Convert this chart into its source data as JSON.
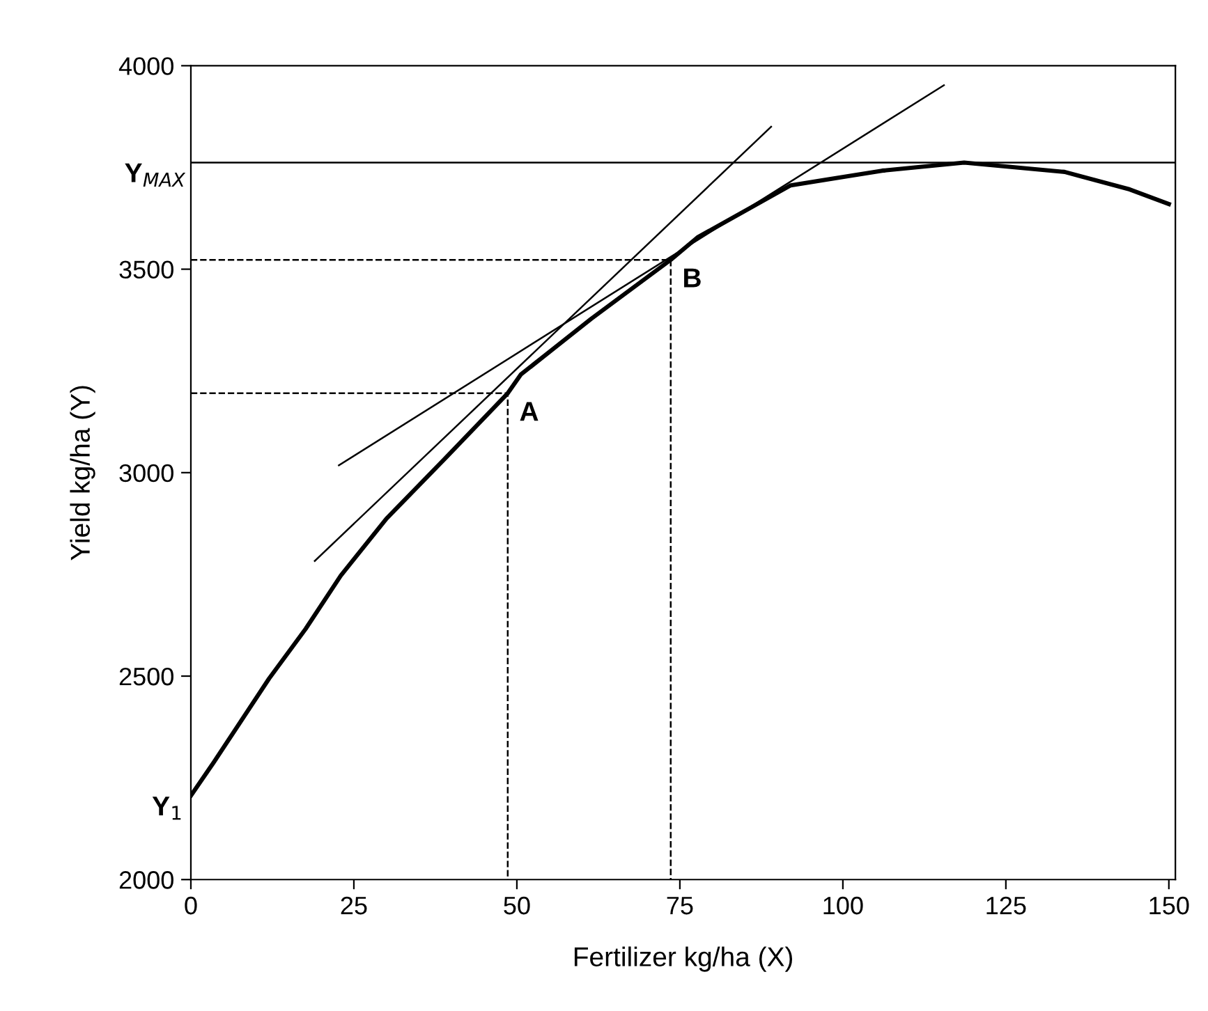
{
  "chart_data": {
    "type": "line",
    "xlabel": "Fertilizer kg/ha (X)",
    "ylabel": "Yield kg/ha (Y)",
    "xlim": [
      0,
      151
    ],
    "ylim": [
      2000,
      4000
    ],
    "xticks": [
      0,
      25,
      50,
      75,
      100,
      125,
      150
    ],
    "yticks": [
      2000,
      2500,
      3000,
      3500,
      4000
    ],
    "grid": false,
    "legend": false,
    "marker": "none",
    "series": [
      {
        "color": "#000000",
        "line_style": "solid",
        "x": [
          0,
          3.5,
          12,
          17.6,
          23,
          30,
          39,
          48.6,
          50.6,
          61.4,
          73.6,
          77.7,
          92,
          106,
          118.6,
          134,
          144,
          150
        ],
        "values": [
          2206,
          2288,
          2494,
          2616,
          2747,
          2887,
          3035,
          3195,
          3241,
          3378,
          3523,
          3578,
          3706,
          3742,
          3762,
          3739,
          3696,
          3660
        ]
      },
      {
        "color": "#000000",
        "line_style": "solid",
        "x": [
          19,
          89
        ],
        "values": [
          2783,
          3850
        ]
      },
      {
        "color": "#000000",
        "line_style": "solid",
        "x": [
          22.7,
          115.5
        ],
        "values": [
          3018,
          3952
        ]
      },
      {
        "color": "#000000",
        "line_style": "dashed",
        "x": [
          0,
          48.6,
          48.6
        ],
        "values": [
          3195,
          3195,
          2000
        ]
      },
      {
        "color": "#000000",
        "line_style": "dashed",
        "x": [
          0,
          73.6,
          73.6
        ],
        "values": [
          3523,
          3523,
          2000
        ]
      }
    ],
    "ref_lines": [
      {
        "axis": "y",
        "value": 3762,
        "label": "Y$_{MAX}$",
        "color": "#000000",
        "line_style": "solid"
      }
    ],
    "annotations": [
      {
        "text": "A",
        "x": 48.6,
        "y": 3195
      },
      {
        "text": "B",
        "x": 73.6,
        "y": 3523
      },
      {
        "text": "Y$_{1}$",
        "x": 0,
        "y": 2206
      }
    ]
  }
}
